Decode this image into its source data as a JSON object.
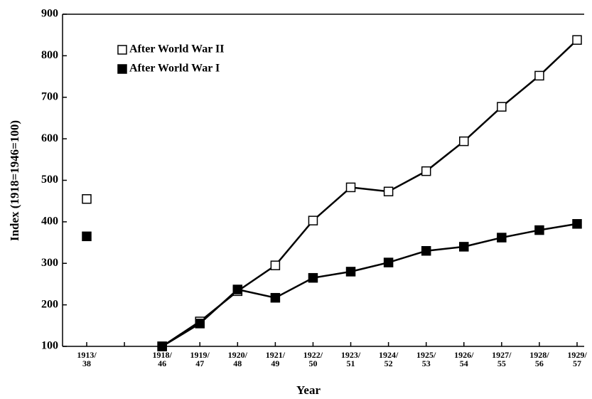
{
  "chart_data": {
    "type": "line",
    "y_label": "Index (1918=1946=100)",
    "x_label": "Year",
    "categories": [
      "1913/ 38",
      null,
      "1918/ 46",
      "1919/ 47",
      "1920/ 48",
      "1921/ 49",
      "1922/ 50",
      "1923/ 51",
      "1924/ 52",
      "1925/ 53",
      "1926/ 54",
      "1927/ 55",
      "1928/ 56",
      "1929/ 57"
    ],
    "series": [
      {
        "name": "After World War II",
        "color": "#000000",
        "fill": "#ffffff",
        "values": [
          455,
          null,
          100,
          160,
          233,
          295,
          403,
          483,
          473,
          522,
          594,
          677,
          752,
          838
        ]
      },
      {
        "name": "After World War I",
        "color": "#000000",
        "fill": "#000000",
        "values": [
          365,
          null,
          100,
          155,
          237,
          217,
          265,
          280,
          302,
          330,
          340,
          362,
          380,
          395
        ]
      }
    ],
    "ylim": [
      100,
      900
    ],
    "yticks": [
      100,
      200,
      300,
      400,
      500,
      600,
      700,
      800,
      900
    ],
    "legend": "upper left"
  }
}
